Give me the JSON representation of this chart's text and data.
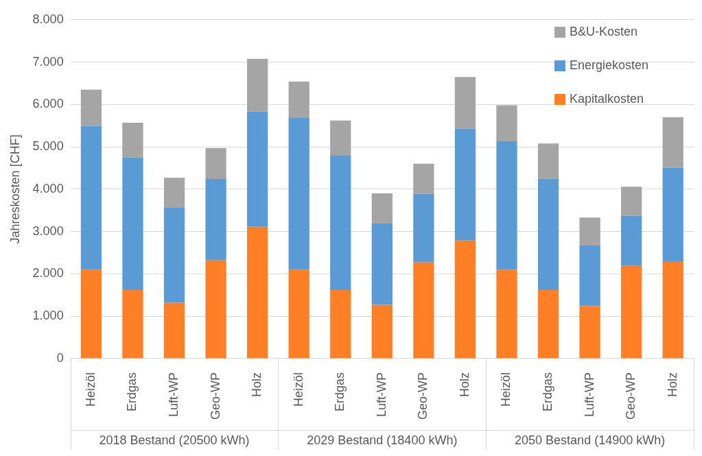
{
  "chart_data": {
    "type": "bar",
    "stacked": true,
    "ylabel": "Jahreskosten [CHF]",
    "categories": [
      "Heizöl",
      "Erdgas",
      "Luft-WP",
      "Geo-WP",
      "Holz",
      "Heizöl",
      "Erdgas",
      "Luft-WP",
      "Geo-WP",
      "Holz",
      "Heizöl",
      "Erdgas",
      "Luft-WP",
      "Geo-WP",
      "Holz"
    ],
    "annotations": [
      "2018 Bestand (20500 kWh)",
      "2029 Bestand (18400 kWh)",
      "2050 Bestand (14900 kWh)"
    ],
    "series": [
      {
        "name": "Kapitalkosten",
        "color": "#ff7f27",
        "values": [
          2100,
          1620,
          1320,
          2320,
          3110,
          2100,
          1620,
          1270,
          2270,
          2790,
          2100,
          1620,
          1240,
          2190,
          2300
        ]
      },
      {
        "name": "Energiekosten",
        "color": "#5b9bd5",
        "values": [
          3390,
          3130,
          2240,
          1920,
          2720,
          3580,
          3170,
          1920,
          1620,
          2640,
          3030,
          2630,
          1430,
          1180,
          2210
        ]
      },
      {
        "name": "B&U-Kosten",
        "color": "#a5a5a5",
        "values": [
          860,
          820,
          710,
          730,
          1250,
          860,
          830,
          710,
          710,
          1220,
          850,
          830,
          660,
          690,
          1190
        ]
      }
    ],
    "ylim": [
      0,
      8000
    ],
    "yticks": [
      {
        "value": 0,
        "label": "0"
      },
      {
        "value": 1000,
        "label": "1.000"
      },
      {
        "value": 2000,
        "label": "2.000"
      },
      {
        "value": 3000,
        "label": "3.000"
      },
      {
        "value": 4000,
        "label": "4.000"
      },
      {
        "value": 5000,
        "label": "5.000"
      },
      {
        "value": 6000,
        "label": "6.000"
      },
      {
        "value": 7000,
        "label": "7.000"
      },
      {
        "value": 8000,
        "label": "8.000"
      }
    ],
    "grid": "y",
    "legend": "top right"
  }
}
